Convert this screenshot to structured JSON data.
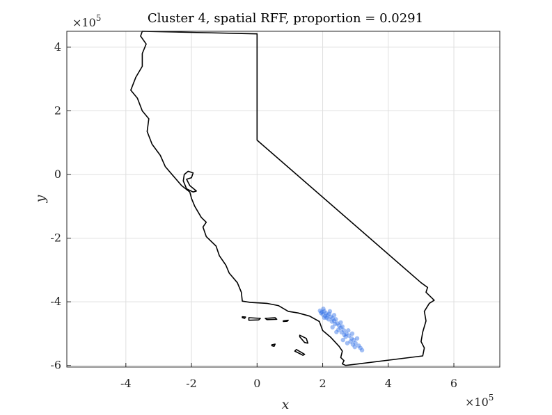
{
  "chart_data": {
    "type": "scatter",
    "title": "Cluster 4, spatial RFF, proportion = 0.0291",
    "xlabel": "x",
    "ylabel": "y",
    "x_multiplier": "×10",
    "x_multiplier_exp": "5",
    "y_multiplier": "×10",
    "y_multiplier_exp": "5",
    "xlim": [
      -5.8,
      7.4
    ],
    "ylim": [
      -6.05,
      4.5
    ],
    "xticks": [
      -4,
      -2,
      0,
      2,
      4,
      6
    ],
    "xtick_labels": [
      "-4",
      "-2",
      "0",
      "2",
      "4",
      "6"
    ],
    "yticks": [
      -6,
      -4,
      -2,
      0,
      2,
      4
    ],
    "ytick_labels": [
      "-6",
      "-4",
      "-2",
      "0",
      "2",
      "4"
    ],
    "grid": true,
    "colors": {
      "points": "#2f6fe6",
      "outline": "#000000",
      "grid": "#dfdfdf"
    },
    "outline": [
      [
        -3.5,
        4.5
      ],
      [
        0.0,
        4.42
      ],
      [
        0.0,
        1.08
      ],
      [
        5.0,
        -3.4
      ],
      [
        5.2,
        -3.55
      ],
      [
        5.15,
        -3.7
      ],
      [
        5.4,
        -3.95
      ],
      [
        5.25,
        -4.05
      ],
      [
        5.1,
        -4.3
      ],
      [
        5.15,
        -4.6
      ],
      [
        5.05,
        -4.95
      ],
      [
        5.0,
        -5.25
      ],
      [
        5.1,
        -5.45
      ],
      [
        5.05,
        -5.7
      ],
      [
        2.7,
        -6.0
      ],
      [
        2.6,
        -5.95
      ],
      [
        2.65,
        -5.85
      ],
      [
        2.55,
        -5.75
      ],
      [
        2.6,
        -5.55
      ],
      [
        2.5,
        -5.4
      ],
      [
        2.25,
        -5.12
      ],
      [
        2.0,
        -4.9
      ],
      [
        1.9,
        -4.62
      ],
      [
        1.6,
        -4.45
      ],
      [
        1.25,
        -4.35
      ],
      [
        0.95,
        -4.3
      ],
      [
        0.65,
        -4.12
      ],
      [
        0.3,
        -4.05
      ],
      [
        -0.2,
        -4.02
      ],
      [
        -0.45,
        -3.98
      ],
      [
        -0.48,
        -3.7
      ],
      [
        -0.6,
        -3.4
      ],
      [
        -0.85,
        -3.1
      ],
      [
        -0.95,
        -2.85
      ],
      [
        -1.15,
        -2.55
      ],
      [
        -1.25,
        -2.25
      ],
      [
        -1.55,
        -1.95
      ],
      [
        -1.65,
        -1.65
      ],
      [
        -1.55,
        -1.5
      ],
      [
        -1.7,
        -1.35
      ],
      [
        -1.9,
        -1.0
      ],
      [
        -2.0,
        -0.75
      ],
      [
        -2.05,
        -0.55
      ],
      [
        -2.3,
        -0.35
      ],
      [
        -2.55,
        -0.05
      ],
      [
        -2.8,
        0.25
      ],
      [
        -2.95,
        0.6
      ],
      [
        -3.2,
        0.95
      ],
      [
        -3.35,
        1.35
      ],
      [
        -3.3,
        1.75
      ],
      [
        -3.5,
        2.0
      ],
      [
        -3.65,
        2.4
      ],
      [
        -3.85,
        2.65
      ],
      [
        -3.7,
        3.05
      ],
      [
        -3.5,
        3.4
      ],
      [
        -3.5,
        3.8
      ],
      [
        -3.38,
        4.1
      ],
      [
        -3.55,
        4.35
      ],
      [
        -3.5,
        4.5
      ]
    ],
    "bay": [
      [
        -2.1,
        0.1
      ],
      [
        -1.95,
        0.05
      ],
      [
        -2.0,
        -0.1
      ],
      [
        -2.15,
        -0.15
      ],
      [
        -2.05,
        -0.35
      ],
      [
        -1.85,
        -0.52
      ],
      [
        -1.95,
        -0.55
      ],
      [
        -2.15,
        -0.45
      ],
      [
        -2.25,
        -0.2
      ],
      [
        -2.22,
        0.0
      ],
      [
        -2.1,
        0.1
      ]
    ],
    "islands": [
      [
        [
          -0.25,
          -4.5
        ],
        [
          0.1,
          -4.52
        ],
        [
          0.05,
          -4.57
        ],
        [
          -0.25,
          -4.58
        ],
        [
          -0.25,
          -4.5
        ]
      ],
      [
        [
          -0.45,
          -4.47
        ],
        [
          -0.35,
          -4.48
        ],
        [
          -0.38,
          -4.52
        ],
        [
          -0.45,
          -4.5
        ],
        [
          -0.45,
          -4.47
        ]
      ],
      [
        [
          0.25,
          -4.52
        ],
        [
          0.55,
          -4.5
        ],
        [
          0.6,
          -4.55
        ],
        [
          0.3,
          -4.56
        ],
        [
          0.25,
          -4.52
        ]
      ],
      [
        [
          0.8,
          -4.6
        ],
        [
          0.95,
          -4.58
        ],
        [
          0.92,
          -4.61
        ],
        [
          0.8,
          -4.62
        ],
        [
          0.8,
          -4.6
        ]
      ],
      [
        [
          1.3,
          -5.05
        ],
        [
          1.5,
          -5.15
        ],
        [
          1.55,
          -5.3
        ],
        [
          1.45,
          -5.28
        ],
        [
          1.3,
          -5.1
        ],
        [
          1.3,
          -5.05
        ]
      ],
      [
        [
          1.2,
          -5.5
        ],
        [
          1.45,
          -5.65
        ],
        [
          1.4,
          -5.68
        ],
        [
          1.15,
          -5.55
        ],
        [
          1.2,
          -5.5
        ]
      ],
      [
        [
          0.45,
          -5.35
        ],
        [
          0.55,
          -5.33
        ],
        [
          0.52,
          -5.4
        ],
        [
          0.45,
          -5.38
        ],
        [
          0.45,
          -5.35
        ]
      ]
    ],
    "points": [
      [
        1.92,
        -4.28
      ],
      [
        1.98,
        -4.32
      ],
      [
        2.05,
        -4.3
      ],
      [
        2.1,
        -4.36
      ],
      [
        2.0,
        -4.4
      ],
      [
        2.15,
        -4.42
      ],
      [
        2.2,
        -4.38
      ],
      [
        2.08,
        -4.45
      ],
      [
        2.25,
        -4.47
      ],
      [
        2.3,
        -4.52
      ],
      [
        2.18,
        -4.55
      ],
      [
        2.35,
        -4.6
      ],
      [
        2.4,
        -4.55
      ],
      [
        2.28,
        -4.62
      ],
      [
        2.45,
        -4.68
      ],
      [
        2.5,
        -4.75
      ],
      [
        2.38,
        -4.7
      ],
      [
        2.55,
        -4.82
      ],
      [
        2.6,
        -4.78
      ],
      [
        2.48,
        -4.88
      ],
      [
        2.65,
        -4.9
      ],
      [
        2.58,
        -4.96
      ],
      [
        2.72,
        -5.0
      ],
      [
        2.8,
        -5.06
      ],
      [
        2.7,
        -5.1
      ],
      [
        2.88,
        -5.15
      ],
      [
        2.95,
        -5.2
      ],
      [
        2.85,
        -5.25
      ],
      [
        3.0,
        -5.3
      ],
      [
        3.1,
        -5.38
      ],
      [
        2.98,
        -5.42
      ],
      [
        3.15,
        -5.45
      ],
      [
        3.2,
        -5.52
      ],
      [
        2.62,
        -5.2
      ],
      [
        2.75,
        -5.3
      ],
      [
        2.42,
        -4.95
      ],
      [
        2.3,
        -4.8
      ],
      [
        2.12,
        -4.5
      ],
      [
        1.95,
        -4.35
      ],
      [
        2.22,
        -4.3
      ],
      [
        2.05,
        -4.5
      ],
      [
        2.9,
        -5.0
      ],
      [
        2.55,
        -4.65
      ],
      [
        3.05,
        -5.15
      ],
      [
        2.78,
        -4.9
      ],
      [
        2.02,
        -4.22
      ],
      [
        2.35,
        -4.42
      ],
      [
        2.66,
        -5.04
      ],
      [
        2.92,
        -5.34
      ]
    ]
  }
}
